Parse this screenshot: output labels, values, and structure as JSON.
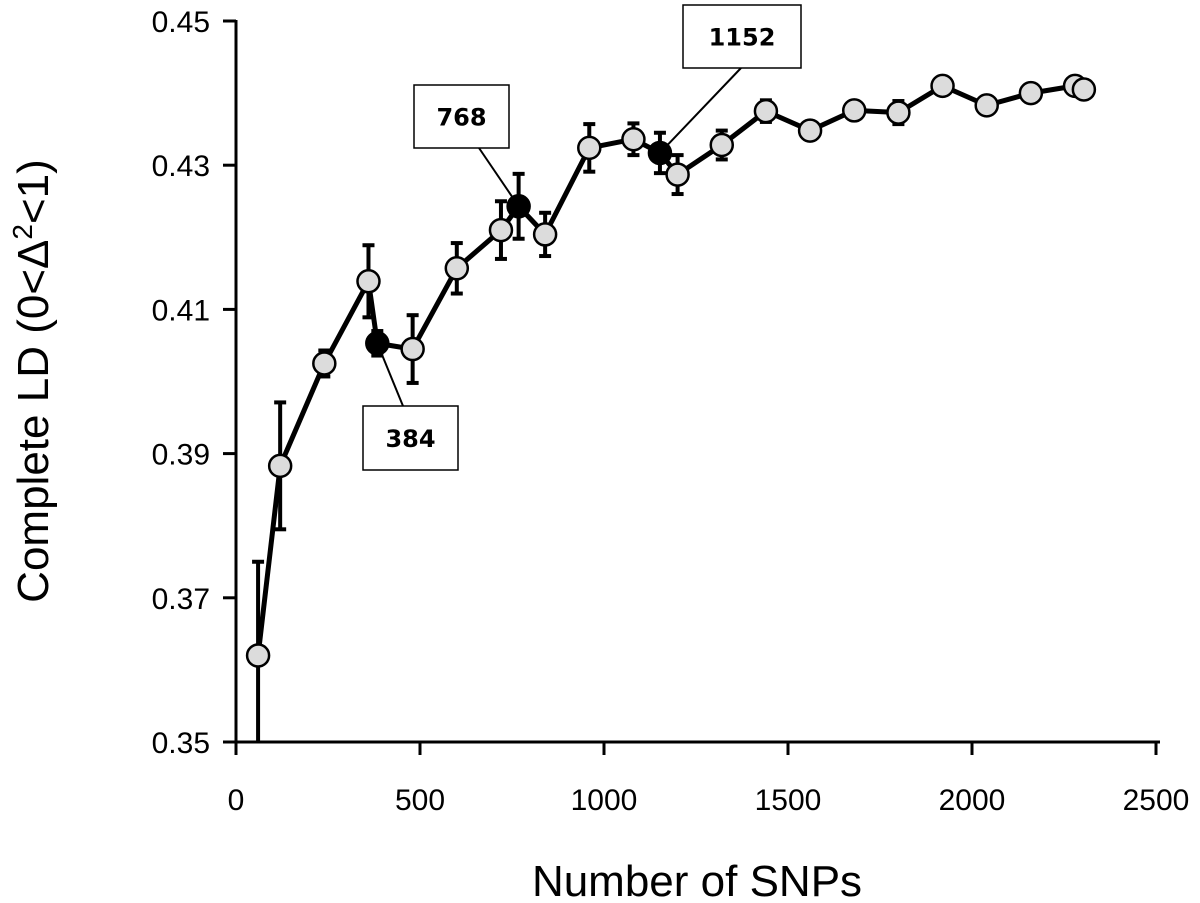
{
  "chart_data": {
    "type": "line",
    "xlabel": "Number of SNPs",
    "ylabel_main": "Complete LD (0<Δ",
    "ylabel_sup": "2",
    "ylabel_tail": "<1)",
    "xlim": [
      0,
      2500
    ],
    "ylim": [
      0.35,
      0.45
    ],
    "x_ticks": [
      0,
      500,
      1000,
      1500,
      2000,
      2500
    ],
    "x_tick_labels": [
      "0",
      "500",
      "1000",
      "1500",
      "2000",
      "2500"
    ],
    "y_ticks": [
      0.35,
      0.37,
      0.39,
      0.41,
      0.43,
      0.45
    ],
    "y_tick_labels": [
      "0.35",
      "0.37",
      "0.39",
      "0.41",
      "0.43",
      "0.45"
    ],
    "grid": false,
    "series": [
      {
        "points": [
          {
            "x": 60,
            "y": 0.362,
            "err": 0.013,
            "highlight": false
          },
          {
            "x": 120,
            "y": 0.3883,
            "err": 0.0088,
            "highlight": false
          },
          {
            "x": 240,
            "y": 0.4025,
            "err": 0.0018,
            "highlight": false
          },
          {
            "x": 360,
            "y": 0.4139,
            "err": 0.005,
            "highlight": false
          },
          {
            "x": 384,
            "y": 0.4053,
            "err": 0.0017,
            "highlight": true
          },
          {
            "x": 480,
            "y": 0.4045,
            "err": 0.0047,
            "highlight": false
          },
          {
            "x": 600,
            "y": 0.4157,
            "err": 0.0035,
            "highlight": false
          },
          {
            "x": 720,
            "y": 0.421,
            "err": 0.004,
            "highlight": false
          },
          {
            "x": 768,
            "y": 0.4243,
            "err": 0.0045,
            "highlight": true
          },
          {
            "x": 840,
            "y": 0.4204,
            "err": 0.003,
            "highlight": false
          },
          {
            "x": 960,
            "y": 0.4324,
            "err": 0.0033,
            "highlight": false
          },
          {
            "x": 1080,
            "y": 0.4336,
            "err": 0.0022,
            "highlight": false
          },
          {
            "x": 1152,
            "y": 0.4317,
            "err": 0.0028,
            "highlight": true
          },
          {
            "x": 1200,
            "y": 0.4287,
            "err": 0.0027,
            "highlight": false
          },
          {
            "x": 1320,
            "y": 0.4328,
            "err": 0.002,
            "highlight": false
          },
          {
            "x": 1440,
            "y": 0.4375,
            "err": 0.0015,
            "highlight": false
          },
          {
            "x": 1560,
            "y": 0.4348,
            "err": 0.001,
            "highlight": false
          },
          {
            "x": 1680,
            "y": 0.4376,
            "err": 0.001,
            "highlight": false
          },
          {
            "x": 1800,
            "y": 0.4373,
            "err": 0.0016,
            "highlight": false
          },
          {
            "x": 1920,
            "y": 0.441,
            "err": 0.001,
            "highlight": false
          },
          {
            "x": 2040,
            "y": 0.4383,
            "err": 0.001,
            "highlight": false
          },
          {
            "x": 2160,
            "y": 0.44,
            "err": 0.0008,
            "highlight": false
          },
          {
            "x": 2280,
            "y": 0.441,
            "err": 0.0008,
            "highlight": false
          },
          {
            "x": 2304,
            "y": 0.4405,
            "err": 0.0008,
            "highlight": false
          }
        ]
      }
    ],
    "annotations": [
      {
        "text": "384",
        "x": 384,
        "y": 0.4053
      },
      {
        "text": "768",
        "x": 768,
        "y": 0.4243
      },
      {
        "text": "1152",
        "x": 1152,
        "y": 0.4317
      }
    ],
    "colors": {
      "line": "#000000",
      "marker_fill": "#dcdcdc",
      "marker_highlight": "#000000",
      "marker_stroke": "#000000"
    }
  }
}
